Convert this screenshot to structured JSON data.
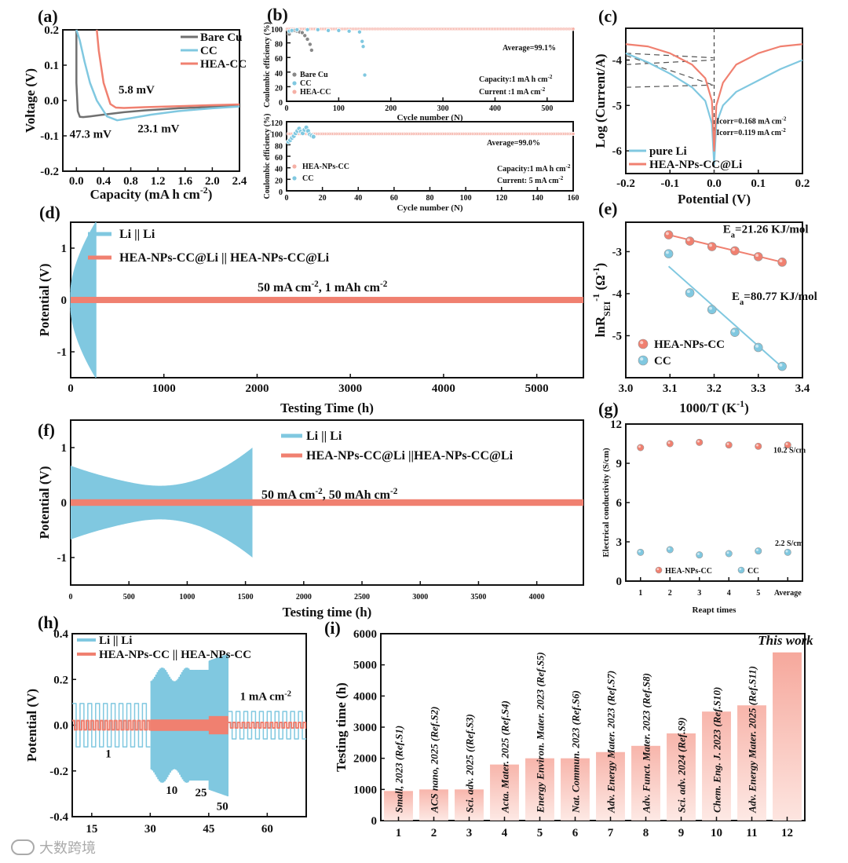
{
  "colors": {
    "red": "#f08070",
    "blue": "#80c8e0",
    "gray": "#707070",
    "redFill": "#f5b0a6",
    "blueFill": "#a9dced"
  },
  "watermark": "大数跨境",
  "chart_data": [
    {
      "id": "a",
      "panel_label": "(a)",
      "type": "line",
      "xlabel": "Capacity (mA h cm",
      "xlabel_sup": "-2",
      "xlabel_end": ")",
      "ylabel": "Voltage (V)",
      "xlim": [
        -0.2,
        2.4
      ],
      "ylim": [
        -0.2,
        0.2
      ],
      "xticks": [
        "0.0",
        "0.4",
        "0.8",
        "1.2",
        "1.6",
        "2.0",
        "2.4"
      ],
      "yticks": [
        "0.2",
        "0.1",
        "0.0",
        "-0.1",
        "-0.2"
      ],
      "series": [
        {
          "name": "Bare Cu",
          "color": "gray",
          "x": [
            0.0,
            0.0,
            0.02,
            0.05,
            0.1,
            0.2,
            0.4,
            0.7,
            1.0,
            1.5,
            2.0,
            2.4
          ],
          "y": [
            0.2,
            0.05,
            -0.03,
            -0.046,
            -0.047,
            -0.045,
            -0.04,
            -0.033,
            -0.028,
            -0.022,
            -0.018,
            -0.015
          ]
        },
        {
          "name": "CC",
          "color": "blue",
          "x": [
            0.0,
            0.05,
            0.12,
            0.2,
            0.3,
            0.45,
            0.6,
            0.8,
            1.1,
            1.5,
            2.0,
            2.4
          ],
          "y": [
            0.2,
            0.17,
            0.11,
            0.05,
            0.0,
            -0.045,
            -0.056,
            -0.05,
            -0.04,
            -0.03,
            -0.022,
            -0.017
          ]
        },
        {
          "name": "HEA-CC",
          "color": "red",
          "x": [
            0.3,
            0.33,
            0.4,
            0.5,
            0.58,
            0.7,
            1.0,
            1.5,
            2.0,
            2.4
          ],
          "y": [
            0.2,
            0.14,
            0.05,
            -0.01,
            -0.02,
            -0.021,
            -0.019,
            -0.016,
            -0.013,
            -0.011
          ]
        }
      ],
      "annotations": [
        {
          "text": "5.8 mV",
          "color": "red"
        },
        {
          "text": "23.1 mV",
          "color": "blue"
        },
        {
          "text": "47.3 mV",
          "color": "gray"
        }
      ]
    },
    {
      "id": "b1",
      "panel_label": "(b)",
      "type": "scatter",
      "xlabel": "Cycle number (N)",
      "ylabel": "Coulombic efficiency (%)",
      "xlim": [
        0,
        550
      ],
      "ylim": [
        0,
        100
      ],
      "xticks": [
        "0",
        "100",
        "200",
        "300",
        "400",
        "500"
      ],
      "yticks": [
        "0",
        "20",
        "40",
        "60",
        "80",
        "100"
      ],
      "legend": [
        "Bare Cu",
        "CC",
        "HEA-CC"
      ],
      "average": "Average=99.1%",
      "capacity": "Capacity:1 mA h cm",
      "capacity_sup": "-2",
      "current": "Current :1 mA cm",
      "current_sup": "-2",
      "series": [
        {
          "name": "Bare Cu",
          "color": "gray",
          "x": [
            5,
            10,
            15,
            20,
            25,
            30,
            35,
            40,
            45,
            48
          ],
          "y": [
            92,
            96,
            97,
            96,
            95,
            94,
            90,
            85,
            78,
            70
          ]
        },
        {
          "name": "CC",
          "color": "blue",
          "x": [
            5,
            10,
            20,
            40,
            60,
            80,
            100,
            120,
            140,
            145,
            147,
            150
          ],
          "y": [
            96,
            97,
            98,
            98,
            98,
            97,
            97,
            96,
            95,
            82,
            75,
            36
          ]
        },
        {
          "name": "HEA-CC",
          "color": "red",
          "x_range": [
            1,
            550
          ],
          "y": 99.1
        }
      ]
    },
    {
      "id": "b2",
      "type": "scatter",
      "xlabel": "Cycle number (N)",
      "ylabel": "Coulombic efficiency (%)",
      "xlim": [
        0,
        160
      ],
      "ylim": [
        0,
        120
      ],
      "xticks": [
        "0",
        "20",
        "40",
        "60",
        "80",
        "100",
        "120",
        "140",
        "160"
      ],
      "yticks": [
        "0",
        "20",
        "40",
        "60",
        "80",
        "100",
        "120"
      ],
      "legend": [
        "HEA-NPs-CC",
        "CC"
      ],
      "average": "Average=99.0%",
      "capacity": "Capacity:1 mA h cm",
      "capacity_sup": "-2",
      "current": "Current: 5 mA cm",
      "current_sup": "-2",
      "series": [
        {
          "name": "CC",
          "color": "blue",
          "x": [
            1,
            2,
            3,
            4,
            5,
            6,
            7,
            8,
            9,
            10,
            11,
            12,
            13,
            14,
            15
          ],
          "y": [
            85,
            88,
            92,
            95,
            100,
            104,
            108,
            103,
            100,
            106,
            110,
            104,
            98,
            96,
            94
          ]
        },
        {
          "name": "HEA-NPs-CC",
          "color": "red",
          "x_range": [
            1,
            160
          ],
          "y": 99.0
        }
      ]
    },
    {
      "id": "c",
      "panel_label": "(c)",
      "type": "line",
      "xlabel": "Potential (V)",
      "ylabel": "Log (Current/A)",
      "xlim": [
        -0.2,
        0.2
      ],
      "ylim": [
        -6.5,
        -3.3
      ],
      "xticks": [
        "-0.2",
        "-0.1",
        "0.0",
        "0.1",
        "0.2"
      ],
      "yticks": [
        "-4",
        "-5",
        "-6"
      ],
      "legend": [
        "pure Li",
        "HEA-NPs-CC@Li"
      ],
      "annotations": [
        "Icorr=0.168 mA cm",
        "Icorr=0.119 mA cm"
      ],
      "annotation_sup": "-2",
      "series": [
        {
          "name": "pure Li",
          "color": "blue",
          "x": [
            -0.2,
            -0.15,
            -0.1,
            -0.05,
            -0.02,
            -0.005,
            0.0,
            0.005,
            0.02,
            0.05,
            0.1,
            0.15,
            0.2
          ],
          "y": [
            -3.85,
            -4.05,
            -4.3,
            -4.6,
            -4.9,
            -5.4,
            -6.3,
            -5.4,
            -5.0,
            -4.7,
            -4.45,
            -4.2,
            -4.0
          ]
        },
        {
          "name": "HEA-NPs-CC@Li",
          "color": "red",
          "x": [
            -0.2,
            -0.15,
            -0.1,
            -0.05,
            -0.02,
            -0.005,
            0.0,
            0.005,
            0.02,
            0.05,
            0.1,
            0.15,
            0.2
          ],
          "y": [
            -3.65,
            -3.7,
            -3.85,
            -4.1,
            -4.4,
            -4.9,
            -6.0,
            -5.0,
            -4.5,
            -4.1,
            -3.85,
            -3.7,
            -3.65
          ]
        }
      ]
    },
    {
      "id": "d",
      "panel_label": "(d)",
      "type": "line",
      "xlabel": "Testing Time (h)",
      "ylabel": "Potential (V)",
      "xlim": [
        0,
        5500
      ],
      "ylim": [
        -1.5,
        1.5
      ],
      "xticks": [
        "0",
        "1000",
        "2000",
        "3000",
        "4000",
        "5000"
      ],
      "yticks": [
        "1",
        "0",
        "-1"
      ],
      "legend": [
        "Li || Li",
        "HEA-NPs-CC@Li || HEA-NPs-CC@Li"
      ],
      "condition": "50 mA cm",
      "condition_sup": "-2",
      "condition_end": ", 1 mAh cm",
      "condition_sup2": "-2",
      "series": [
        {
          "name": "Li || Li",
          "color": "blue",
          "x_end": 270,
          "amp_end": 1.5
        },
        {
          "name": "HEA-NPs-CC@Li || HEA-NPs-CC@Li",
          "color": "red",
          "x_end": 5500,
          "amp": 0.03
        }
      ]
    },
    {
      "id": "e",
      "panel_label": "(e)",
      "type": "scatter",
      "xlabel": "1000/T (K",
      "xlabel_sup": "-1",
      "xlabel_end": ")",
      "ylabel": "lnR",
      "ylabel_sub": "SEI",
      "ylabel_sup": "-1",
      "ylabel_end": " (Ω",
      "ylabel_sup2": "-1",
      "ylabel_end2": ")",
      "xlim": [
        3.0,
        3.4
      ],
      "ylim": [
        -6,
        -2.3
      ],
      "xticks": [
        "3.0",
        "3.1",
        "3.2",
        "3.3",
        "3.4"
      ],
      "yticks": [
        "-3",
        "-4",
        "-5"
      ],
      "legend": [
        "HEA-NPs-CC",
        "CC"
      ],
      "ea_red": "E",
      "ea_red_sub": "a",
      "ea_red_val": "=21.26 KJ/mol",
      "ea_blue": "E",
      "ea_blue_sub": "a",
      "ea_blue_val": "=80.77 KJ/mol",
      "series": [
        {
          "name": "HEA-NPs-CC",
          "color": "red",
          "x": [
            3.097,
            3.145,
            3.195,
            3.247,
            3.3,
            3.354
          ],
          "y": [
            -2.6,
            -2.75,
            -2.88,
            -2.98,
            -3.12,
            -3.25
          ]
        },
        {
          "name": "CC",
          "color": "blue",
          "x": [
            3.097,
            3.145,
            3.195,
            3.247,
            3.3,
            3.354
          ],
          "y": [
            -3.05,
            -3.98,
            -4.38,
            -4.92,
            -5.28,
            -5.73
          ]
        }
      ]
    },
    {
      "id": "f",
      "panel_label": "(f)",
      "type": "line",
      "xlabel": "Testing time (h)",
      "ylabel": "Potential (V)",
      "xlim": [
        0,
        4400
      ],
      "ylim": [
        -1.5,
        1.5
      ],
      "xticks": [
        "0",
        "500",
        "1000",
        "1500",
        "2000",
        "2500",
        "3000",
        "3500",
        "4000"
      ],
      "yticks": [
        "1",
        "0",
        "-1"
      ],
      "legend": [
        "Li || Li",
        "HEA-NPs-CC@Li ||HEA-NPs-CC@Li"
      ],
      "condition": "50 mA cm",
      "condition_sup": "-2",
      "condition_end": ", 50 mAh cm",
      "condition_sup2": "-2",
      "series": [
        {
          "name": "Li || Li",
          "color": "blue",
          "x_end": 1560
        },
        {
          "name": "HEA-NPs-CC@Li ||HEA-NPs-CC@Li",
          "color": "red",
          "x_end": 4400,
          "amp": 0.03
        }
      ]
    },
    {
      "id": "g",
      "panel_label": "(g)",
      "type": "scatter",
      "xlabel": "Reapt times",
      "ylabel": "Electrical conductivity (S/cm)",
      "ylim": [
        0,
        12
      ],
      "categories": [
        "1",
        "2",
        "3",
        "4",
        "5",
        "Average"
      ],
      "yticks": [
        "0",
        "3",
        "6",
        "9",
        "12"
      ],
      "legend": [
        "HEA-NPs-CC",
        "CC"
      ],
      "annotations": [
        "10.2 S/cm",
        "2.2 S/cm"
      ],
      "series": [
        {
          "name": "HEA-NPs-CC",
          "color": "red",
          "values": [
            10.2,
            10.5,
            10.6,
            10.4,
            10.3,
            10.4
          ]
        },
        {
          "name": "CC",
          "color": "blue",
          "values": [
            2.2,
            2.4,
            2.0,
            2.1,
            2.3,
            2.2
          ]
        }
      ]
    },
    {
      "id": "h",
      "panel_label": "(h)",
      "type": "line",
      "xlabel": "Testing time (h)",
      "ylabel": "Potential (V)",
      "xlim": [
        10,
        70
      ],
      "ylim": [
        -0.4,
        0.4
      ],
      "xticks": [
        "15",
        "30",
        "45",
        "60"
      ],
      "yticks": [
        "0.4",
        "0.2",
        "0.0",
        "-0.2",
        "-0.4"
      ],
      "legend": [
        "Li || Li",
        "HEA-NPs-CC || HEA-NPs-CC"
      ],
      "rate_labels": [
        "1",
        "10",
        "25",
        "50"
      ],
      "current_label": "1 mA cm",
      "current_sup": "-2"
    },
    {
      "id": "i",
      "panel_label": "(i)",
      "type": "bar",
      "xlabel": "",
      "ylabel": "Testing time (h)",
      "ylim": [
        0,
        6000
      ],
      "categories": [
        "1",
        "2",
        "3",
        "4",
        "5",
        "6",
        "7",
        "8",
        "9",
        "10",
        "11",
        "12"
      ],
      "yticks": [
        "0",
        "1000",
        "2000",
        "3000",
        "4000",
        "5000",
        "6000"
      ],
      "values": [
        950,
        1000,
        1000,
        1800,
        2000,
        2000,
        2200,
        2400,
        2800,
        3500,
        3700,
        5400
      ],
      "refs": [
        "Small, 2023 (Ref.S1)",
        "ACS nano, 2025 (Ref.S2)",
        "Sci. adv. 2025 ((Ref.S3)",
        "Acta. Mater. 2025 (Ref.S4)",
        "Energy Environ. Mater. 2023 (Ref.S5)",
        "Nat. Commun. 2023 (Ref.S6)",
        "Adv. Energy Mater. 2023 (Ref.S7)",
        "Adv. Funct. Mater. 2023 (Ref.S8)",
        "Sci. adv. 2024 (Ref.S9)",
        "Chem. Eng. J. 2023 (Ref.S10)",
        "Adv. Energy Mater. 2025 (Ref.S11)"
      ],
      "highlight": "This work"
    }
  ]
}
